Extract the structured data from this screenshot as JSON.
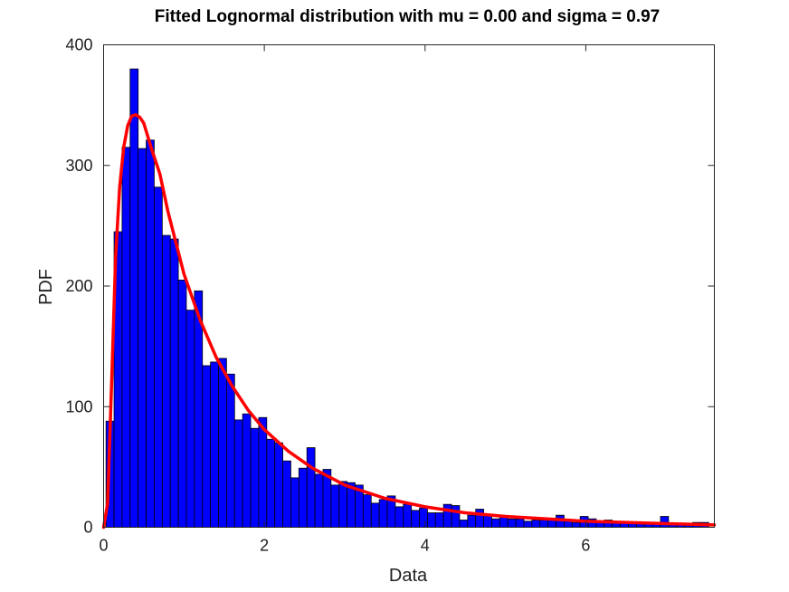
{
  "chart_data": {
    "type": "bar",
    "title": "Fitted Lognormal distribution with mu = 0.00 and sigma = 0.97",
    "xlabel": "Data",
    "ylabel": "PDF",
    "xlim": [
      0,
      7.6
    ],
    "ylim": [
      0,
      400
    ],
    "xticks": [
      0,
      2,
      4,
      6
    ],
    "yticks": [
      0,
      100,
      200,
      300,
      400
    ],
    "grid": false,
    "bar_color": "#0000ff",
    "curve_color": "#ff0000",
    "bin_width": 0.1,
    "bin_start": 0.03,
    "counts": [
      88,
      245,
      315,
      380,
      314,
      321,
      282,
      242,
      239,
      205,
      180,
      196,
      134,
      137,
      140,
      127,
      89,
      94,
      82,
      91,
      73,
      70,
      55,
      41,
      49,
      66,
      44,
      48,
      35,
      38,
      37,
      35,
      27,
      20,
      23,
      26,
      17,
      19,
      14,
      16,
      12,
      12,
      19,
      18,
      6,
      10,
      15,
      10,
      7,
      9,
      7,
      7,
      5,
      6,
      6,
      6,
      10,
      6,
      4,
      9,
      7,
      5,
      6,
      4,
      4,
      4,
      3,
      3,
      3,
      9,
      3,
      3,
      3,
      4,
      4
    ],
    "fit_curve": {
      "x": [
        0.0,
        0.05,
        0.1,
        0.15,
        0.2,
        0.25,
        0.3,
        0.35,
        0.4,
        0.45,
        0.5,
        0.6,
        0.7,
        0.8,
        0.9,
        1.0,
        1.2,
        1.4,
        1.6,
        1.8,
        2.0,
        2.3,
        2.6,
        3.0,
        3.5,
        4.0,
        4.5,
        5.0,
        5.5,
        6.0,
        6.5,
        7.0,
        7.6
      ],
      "y": [
        0,
        20,
        120,
        225,
        282,
        315,
        333,
        341,
        342,
        340,
        335,
        313,
        293,
        262,
        236,
        210,
        172,
        141,
        117,
        97,
        81,
        63,
        49,
        35,
        24,
        17,
        12,
        9,
        7,
        5,
        4,
        3,
        2
      ]
    }
  }
}
